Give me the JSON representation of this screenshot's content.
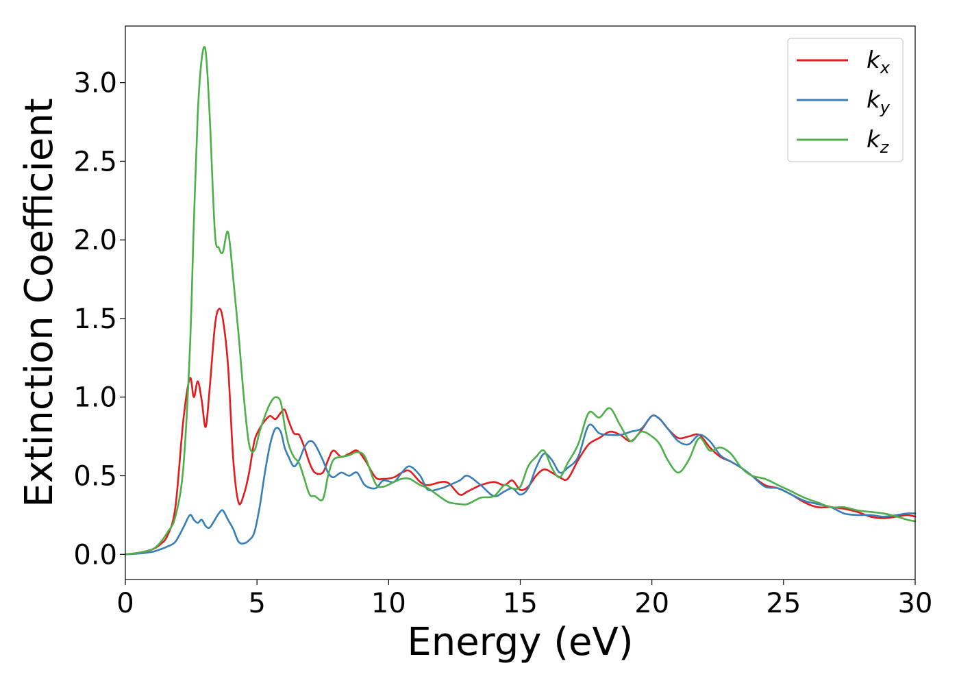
{
  "chart_data": {
    "type": "line",
    "xlabel": "Energy (eV)",
    "ylabel": "Extinction Coefficient",
    "xlim": [
      0,
      30
    ],
    "ylim": [
      -0.16,
      3.36
    ],
    "xticks": [
      0,
      5,
      10,
      15,
      20,
      25,
      30
    ],
    "yticks": [
      0.0,
      0.5,
      1.0,
      1.5,
      2.0,
      2.5,
      3.0
    ],
    "xtick_labels": [
      "0",
      "5",
      "10",
      "15",
      "20",
      "25",
      "30"
    ],
    "ytick_labels": [
      "0.0",
      "0.5",
      "1.0",
      "1.5",
      "2.0",
      "2.5",
      "3.0"
    ],
    "grid": false,
    "legend_position": "top-right",
    "series": [
      {
        "name": "k_x",
        "legend_base": "k",
        "legend_sub": "x",
        "color": "#e41a1c",
        "x": [
          0,
          0.5,
          1.0,
          1.3,
          1.6,
          1.9,
          2.2,
          2.45,
          2.6,
          2.75,
          2.9,
          3.05,
          3.2,
          3.4,
          3.55,
          3.7,
          3.9,
          4.1,
          4.3,
          4.5,
          4.7,
          4.9,
          5.1,
          5.3,
          5.5,
          5.7,
          5.9,
          6.05,
          6.2,
          6.4,
          6.6,
          6.8,
          7.0,
          7.2,
          7.5,
          7.7,
          7.9,
          8.2,
          8.5,
          8.8,
          9.1,
          9.5,
          9.8,
          10.2,
          10.5,
          10.8,
          11.2,
          11.5,
          12.0,
          12.3,
          12.7,
          13.0,
          13.5,
          14.0,
          14.4,
          14.7,
          15.0,
          15.3,
          15.6,
          15.9,
          16.2,
          16.5,
          16.8,
          17.2,
          17.6,
          18.0,
          18.4,
          18.8,
          19.2,
          19.6,
          20.0,
          20.3,
          20.6,
          21.0,
          21.4,
          21.8,
          22.2,
          22.6,
          23.0,
          23.4,
          23.8,
          24.3,
          24.8,
          25.3,
          25.8,
          26.3,
          26.8,
          27.3,
          27.8,
          28.3,
          28.8,
          29.3,
          29.7,
          30.0
        ],
        "y": [
          0,
          0.01,
          0.03,
          0.06,
          0.12,
          0.3,
          0.85,
          1.12,
          1.0,
          1.1,
          0.98,
          0.81,
          1.05,
          1.45,
          1.56,
          1.5,
          1.2,
          0.6,
          0.33,
          0.38,
          0.52,
          0.72,
          0.8,
          0.85,
          0.88,
          0.86,
          0.9,
          0.92,
          0.85,
          0.77,
          0.76,
          0.68,
          0.58,
          0.52,
          0.52,
          0.6,
          0.66,
          0.62,
          0.64,
          0.66,
          0.6,
          0.49,
          0.48,
          0.49,
          0.52,
          0.53,
          0.46,
          0.44,
          0.46,
          0.45,
          0.38,
          0.4,
          0.44,
          0.46,
          0.44,
          0.47,
          0.41,
          0.43,
          0.5,
          0.54,
          0.52,
          0.49,
          0.48,
          0.6,
          0.7,
          0.74,
          0.78,
          0.76,
          0.72,
          0.79,
          0.88,
          0.86,
          0.8,
          0.74,
          0.75,
          0.76,
          0.68,
          0.62,
          0.59,
          0.55,
          0.5,
          0.44,
          0.42,
          0.38,
          0.33,
          0.3,
          0.3,
          0.29,
          0.27,
          0.24,
          0.23,
          0.24,
          0.25,
          0.24
        ]
      },
      {
        "name": "k_y",
        "legend_base": "k",
        "legend_sub": "y",
        "color": "#377eb8",
        "x": [
          0,
          0.5,
          1.0,
          1.3,
          1.6,
          1.9,
          2.2,
          2.45,
          2.6,
          2.75,
          2.9,
          3.05,
          3.2,
          3.4,
          3.55,
          3.7,
          3.9,
          4.1,
          4.3,
          4.5,
          4.7,
          4.9,
          5.1,
          5.3,
          5.5,
          5.7,
          5.9,
          6.05,
          6.2,
          6.4,
          6.6,
          6.8,
          7.0,
          7.2,
          7.5,
          7.7,
          7.9,
          8.2,
          8.5,
          8.8,
          9.1,
          9.5,
          9.8,
          10.2,
          10.5,
          10.8,
          11.2,
          11.5,
          12.0,
          12.3,
          12.7,
          13.0,
          13.5,
          14.0,
          14.4,
          14.7,
          15.0,
          15.3,
          15.6,
          15.9,
          16.2,
          16.5,
          16.8,
          17.2,
          17.6,
          18.0,
          18.4,
          18.8,
          19.2,
          19.6,
          20.0,
          20.3,
          20.6,
          21.0,
          21.4,
          21.8,
          22.2,
          22.6,
          23.0,
          23.4,
          23.8,
          24.3,
          24.8,
          25.3,
          25.8,
          26.3,
          26.8,
          27.3,
          27.8,
          28.3,
          28.8,
          29.3,
          29.7,
          30.0
        ],
        "y": [
          0,
          0.005,
          0.015,
          0.03,
          0.05,
          0.08,
          0.17,
          0.25,
          0.22,
          0.2,
          0.22,
          0.18,
          0.17,
          0.22,
          0.26,
          0.28,
          0.22,
          0.16,
          0.08,
          0.07,
          0.09,
          0.14,
          0.3,
          0.52,
          0.7,
          0.8,
          0.78,
          0.68,
          0.62,
          0.56,
          0.6,
          0.68,
          0.72,
          0.7,
          0.6,
          0.52,
          0.49,
          0.52,
          0.5,
          0.52,
          0.44,
          0.42,
          0.47,
          0.46,
          0.52,
          0.56,
          0.5,
          0.41,
          0.42,
          0.44,
          0.47,
          0.5,
          0.44,
          0.37,
          0.4,
          0.42,
          0.38,
          0.42,
          0.55,
          0.64,
          0.6,
          0.52,
          0.55,
          0.62,
          0.82,
          0.77,
          0.76,
          0.76,
          0.78,
          0.8,
          0.88,
          0.86,
          0.8,
          0.72,
          0.7,
          0.76,
          0.72,
          0.63,
          0.59,
          0.55,
          0.5,
          0.43,
          0.42,
          0.38,
          0.34,
          0.32,
          0.3,
          0.26,
          0.25,
          0.25,
          0.24,
          0.25,
          0.26,
          0.26
        ]
      },
      {
        "name": "k_z",
        "legend_base": "k",
        "legend_sub": "z",
        "color": "#4daf4a",
        "x": [
          0,
          0.5,
          1.0,
          1.3,
          1.6,
          1.9,
          2.2,
          2.45,
          2.6,
          2.75,
          2.9,
          3.05,
          3.2,
          3.4,
          3.55,
          3.7,
          3.9,
          4.1,
          4.3,
          4.5,
          4.7,
          4.9,
          5.1,
          5.3,
          5.5,
          5.7,
          5.9,
          6.05,
          6.2,
          6.4,
          6.6,
          6.8,
          7.0,
          7.2,
          7.5,
          7.7,
          7.9,
          8.2,
          8.5,
          8.8,
          9.1,
          9.5,
          9.8,
          10.2,
          10.5,
          10.8,
          11.2,
          11.5,
          12.0,
          12.3,
          12.7,
          13.0,
          13.5,
          14.0,
          14.4,
          14.7,
          15.0,
          15.3,
          15.6,
          15.9,
          16.2,
          16.5,
          16.8,
          17.2,
          17.6,
          18.0,
          18.4,
          18.8,
          19.2,
          19.6,
          20.0,
          20.3,
          20.6,
          21.0,
          21.4,
          21.8,
          22.2,
          22.6,
          23.0,
          23.4,
          23.8,
          24.3,
          24.8,
          25.3,
          25.8,
          26.3,
          26.8,
          27.3,
          27.8,
          28.3,
          28.8,
          29.3,
          29.7,
          30.0
        ],
        "y": [
          0,
          0.01,
          0.03,
          0.07,
          0.14,
          0.24,
          0.55,
          1.3,
          2.1,
          2.8,
          3.15,
          3.2,
          2.8,
          2.05,
          1.95,
          1.92,
          2.05,
          1.75,
          1.4,
          1.0,
          0.7,
          0.66,
          0.78,
          0.88,
          0.96,
          1.0,
          0.97,
          0.82,
          0.7,
          0.62,
          0.58,
          0.48,
          0.38,
          0.37,
          0.35,
          0.5,
          0.6,
          0.62,
          0.63,
          0.65,
          0.62,
          0.45,
          0.43,
          0.46,
          0.48,
          0.48,
          0.44,
          0.42,
          0.36,
          0.33,
          0.32,
          0.32,
          0.36,
          0.37,
          0.44,
          0.42,
          0.43,
          0.56,
          0.62,
          0.66,
          0.55,
          0.49,
          0.58,
          0.7,
          0.9,
          0.87,
          0.93,
          0.82,
          0.72,
          0.78,
          0.75,
          0.7,
          0.6,
          0.52,
          0.6,
          0.74,
          0.66,
          0.68,
          0.64,
          0.55,
          0.5,
          0.48,
          0.44,
          0.4,
          0.36,
          0.33,
          0.3,
          0.3,
          0.28,
          0.27,
          0.26,
          0.24,
          0.22,
          0.21
        ]
      }
    ]
  }
}
